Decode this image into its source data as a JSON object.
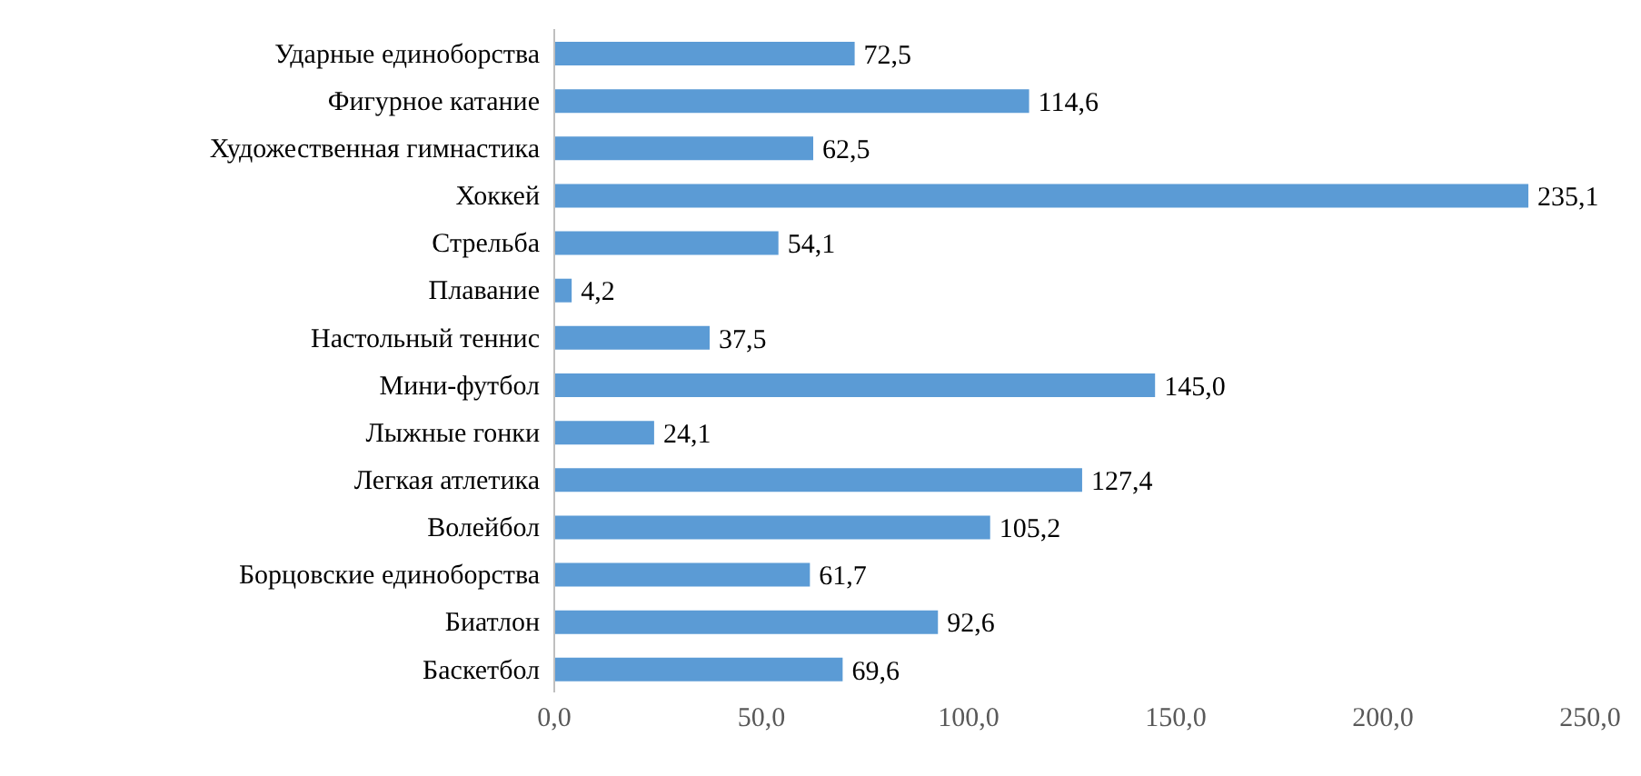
{
  "chart_data": {
    "type": "bar",
    "orientation": "horizontal",
    "categories": [
      "Ударные единоборства",
      "Фигурное катание",
      "Художественная гимнастика",
      "Хоккей",
      "Стрельба",
      "Плавание",
      "Настольный теннис",
      "Мини-футбол",
      "Лыжные гонки",
      "Легкая атлетика",
      "Волейбол",
      "Борцовские единоборства",
      "Биатлон",
      "Баскетбол"
    ],
    "values": [
      72.5,
      114.6,
      62.5,
      235.1,
      54.1,
      4.2,
      37.5,
      145.0,
      24.1,
      127.4,
      105.2,
      61.7,
      92.6,
      69.6
    ],
    "value_labels": [
      "72,5",
      "114,6",
      "62,5",
      "235,1",
      "54,1",
      "4,2",
      "37,5",
      "145,0",
      "24,1",
      "127,4",
      "105,2",
      "61,7",
      "92,6",
      "69,6"
    ],
    "color": "#5b9bd5",
    "xlim": [
      0,
      250
    ],
    "xticks": [
      {
        "value": 0,
        "label": "0,0"
      },
      {
        "value": 50,
        "label": "50,0"
      },
      {
        "value": 100,
        "label": "100,0"
      },
      {
        "value": 150,
        "label": "150,0"
      },
      {
        "value": 200,
        "label": "200,0"
      },
      {
        "value": 250,
        "label": "250,0"
      }
    ],
    "grid": false,
    "legend": false
  }
}
